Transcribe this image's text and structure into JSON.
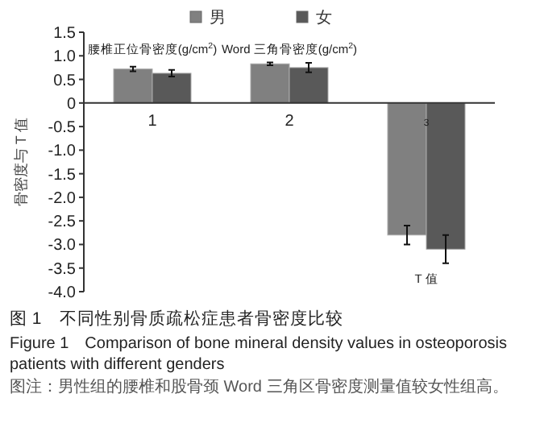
{
  "chart_data": {
    "type": "bar",
    "title": "图 1　不同性别骨质疏松症患者骨密度比较",
    "subtitle": "Figure 1　Comparison of bone mineral density values in osteoporosis patients with different genders",
    "ylabel": "骨密度与 T 值",
    "categories": [
      "1",
      "2",
      "3"
    ],
    "series": [
      {
        "name": "男",
        "color": "#808080",
        "values": [
          0.72,
          0.83,
          -2.8
        ],
        "errors": [
          0.05,
          0.03,
          0.2
        ]
      },
      {
        "name": "女",
        "color": "#595959",
        "values": [
          0.63,
          0.75,
          -3.1
        ],
        "errors": [
          0.07,
          0.1,
          0.3
        ]
      }
    ],
    "ylim": [
      -4.0,
      1.5
    ],
    "yticks": [
      1.5,
      {
        "value": 1,
        "label": "1.0"
      },
      0.5,
      0,
      -0.5,
      {
        "value": -1,
        "label": "-1.0"
      },
      -1.5,
      {
        "value": -2,
        "label": "-2.0"
      },
      -2.5,
      {
        "value": -3,
        "label": "-3.0"
      },
      -3.5,
      {
        "value": -4,
        "label": "-4.0"
      }
    ],
    "legend": "top",
    "annotations": [
      "腰椎正位骨密度(g/cm$^{2}$)",
      "Word 三角骨密度(g/cm$^{2}$)",
      "T 值",
      "图注：男性组的腰椎和股骨颈 Word 三角区骨密度测量值较女性组高。"
    ]
  }
}
